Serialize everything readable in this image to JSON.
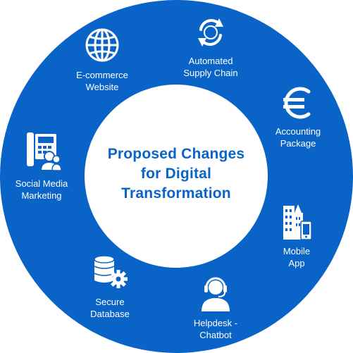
{
  "center": {
    "title_lines": [
      "Proposed Changes",
      "for Digital",
      "Transformation"
    ]
  },
  "items": [
    {
      "id": "ecommerce",
      "icon": "globe-icon",
      "lines": [
        "E-commerce",
        "Website"
      ]
    },
    {
      "id": "supply-chain",
      "icon": "cycle-arrows-icon",
      "lines": [
        "Automated",
        "Supply Chain"
      ]
    },
    {
      "id": "accounting",
      "icon": "euro-icon",
      "lines": [
        "Accounting",
        "Package"
      ]
    },
    {
      "id": "mobile",
      "icon": "buildings-phone-icon",
      "lines": [
        "Mobile",
        "App"
      ]
    },
    {
      "id": "helpdesk",
      "icon": "headset-agent-icon",
      "lines": [
        "Helpdesk -",
        "Chatbot"
      ]
    },
    {
      "id": "database",
      "icon": "database-gear-icon",
      "lines": [
        "Secure",
        "Database"
      ]
    },
    {
      "id": "social",
      "icon": "phone-users-icon",
      "lines": [
        "Social Media",
        "Marketing"
      ]
    }
  ],
  "colors": {
    "ring": "#0a64c8",
    "center": "#ffffff",
    "title": "#0a64c8",
    "icon": "#ffffff"
  }
}
